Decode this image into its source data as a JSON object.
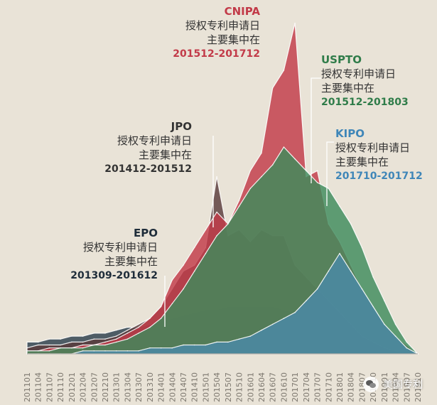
{
  "chart_data": {
    "type": "area",
    "title": "",
    "xlabel": "",
    "ylabel": "",
    "x_ticks": [
      "201101",
      "201104",
      "201107",
      "201110",
      "201201",
      "201204",
      "201207",
      "201210",
      "201301",
      "201304",
      "201307",
      "201310",
      "201401",
      "201404",
      "201407",
      "201410",
      "201501",
      "201504",
      "201507",
      "201510",
      "201601",
      "201604",
      "201607",
      "201610",
      "201701",
      "201704",
      "201707",
      "201710",
      "201801",
      "201804",
      "201807",
      "201810",
      "201901",
      "201904",
      "201907",
      "201910"
    ],
    "series": [
      {
        "name": "EPO",
        "color": "#2c3e4c",
        "values": [
          4,
          4,
          5,
          5,
          6,
          6,
          7,
          7,
          8,
          9,
          9,
          10,
          11,
          12,
          13,
          14,
          15,
          15,
          16,
          16,
          16,
          16,
          16,
          15,
          14,
          12,
          10,
          8,
          6,
          5,
          4,
          3,
          2,
          1,
          1,
          0
        ]
      },
      {
        "name": "JPO",
        "color": "#5a3c3c",
        "values": [
          2,
          3,
          3,
          3,
          4,
          4,
          5,
          5,
          6,
          8,
          10,
          12,
          16,
          22,
          28,
          30,
          36,
          60,
          40,
          42,
          38,
          42,
          40,
          40,
          30,
          26,
          22,
          18,
          14,
          10,
          6,
          4,
          2,
          1,
          0,
          0
        ]
      },
      {
        "name": "CNIPA",
        "color": "#c23a48",
        "values": [
          1,
          1,
          2,
          2,
          2,
          3,
          3,
          4,
          5,
          7,
          9,
          12,
          16,
          25,
          30,
          36,
          42,
          48,
          44,
          52,
          62,
          68,
          90,
          96,
          112,
          60,
          62,
          44,
          38,
          30,
          22,
          16,
          10,
          6,
          3,
          0
        ]
      },
      {
        "name": "USPTO",
        "color": "#3e8b5c",
        "values": [
          1,
          1,
          1,
          2,
          2,
          2,
          3,
          3,
          4,
          5,
          7,
          9,
          12,
          17,
          22,
          28,
          34,
          40,
          44,
          50,
          56,
          60,
          64,
          70,
          66,
          62,
          58,
          56,
          50,
          44,
          36,
          26,
          18,
          10,
          4,
          0
        ]
      },
      {
        "name": "KIPO",
        "color": "#4a8aa8",
        "values": [
          0,
          0,
          0,
          0,
          0,
          1,
          1,
          1,
          1,
          1,
          1,
          2,
          2,
          2,
          3,
          3,
          3,
          4,
          4,
          5,
          6,
          8,
          10,
          12,
          14,
          18,
          22,
          28,
          34,
          28,
          22,
          16,
          10,
          6,
          2,
          0
        ]
      }
    ],
    "annotations": [
      {
        "office": "CNIPA",
        "line1": "授权专利申请日",
        "line2": "主要集中在",
        "range": "201512-201712"
      },
      {
        "office": "USPTO",
        "line1": "授权专利申请日",
        "line2": "主要集中在",
        "range": "201512-201803"
      },
      {
        "office": "JPO",
        "line1": "授权专利申请日",
        "line2": "主要集中在",
        "range": "201412-201512"
      },
      {
        "office": "KIPO",
        "line1": "授权专利申请日",
        "line2": "主要集中在",
        "range": "201710-201712"
      },
      {
        "office": "EPO",
        "line1": "授权专利申请日",
        "line2": "主要集中在",
        "range": "201309-201612"
      }
    ],
    "legend": "none",
    "grid": false
  },
  "watermark": "美国专利"
}
